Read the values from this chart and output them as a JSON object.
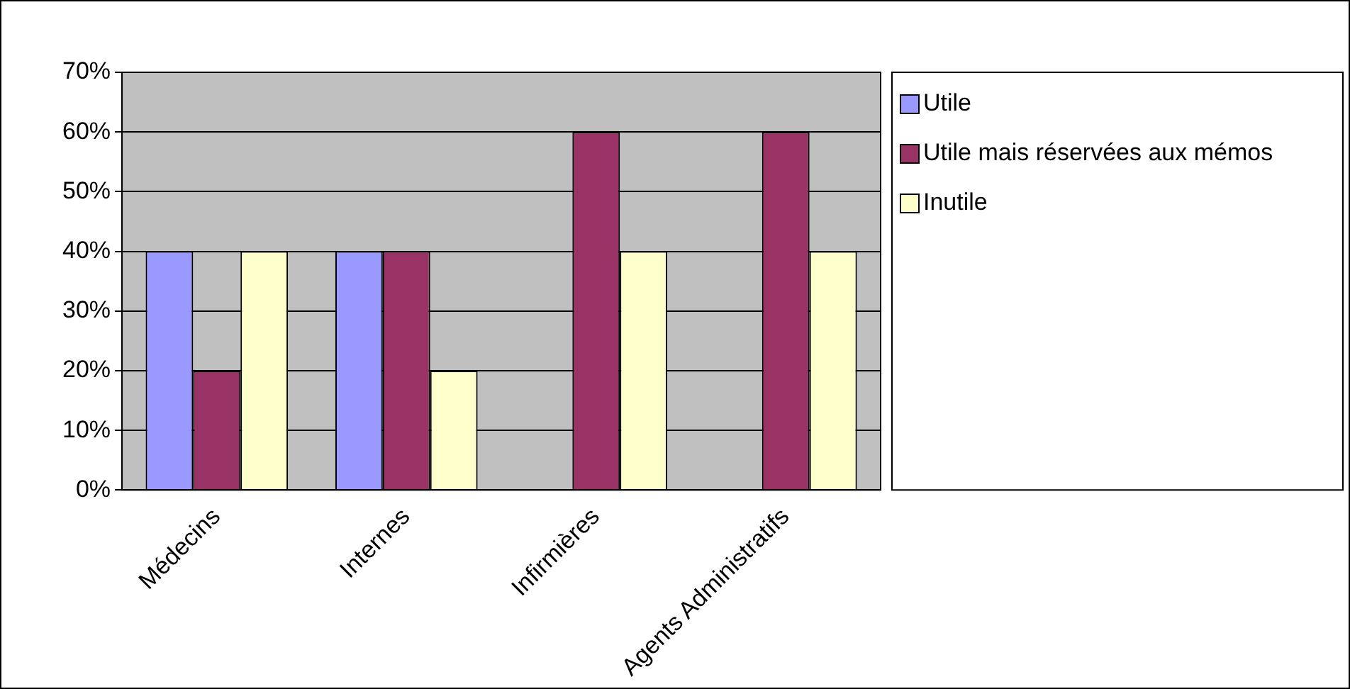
{
  "chart_data": {
    "type": "bar",
    "categories": [
      "Médecins",
      "Internes",
      "Infirmières",
      "Agents Administratifs"
    ],
    "series": [
      {
        "name": "Utile",
        "color": "#9999ff",
        "values": [
          40,
          40,
          0,
          0
        ]
      },
      {
        "name": "Utile mais réservées aux mémos",
        "color": "#993366",
        "values": [
          20,
          40,
          60,
          60
        ]
      },
      {
        "name": "Inutile",
        "color": "#ffffcc",
        "values": [
          40,
          20,
          40,
          40
        ]
      }
    ],
    "ylim": [
      0,
      70
    ],
    "yticks": [
      {
        "value": 0,
        "label": "0%"
      },
      {
        "value": 10,
        "label": "10%"
      },
      {
        "value": 20,
        "label": "20%"
      },
      {
        "value": 30,
        "label": "30%"
      },
      {
        "value": 40,
        "label": "40%"
      },
      {
        "value": 50,
        "label": "50%"
      },
      {
        "value": 60,
        "label": "60%"
      },
      {
        "value": 70,
        "label": "70%"
      }
    ],
    "grid": "y",
    "legend": "right"
  }
}
